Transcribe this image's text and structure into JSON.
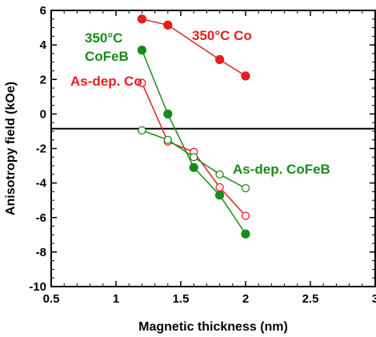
{
  "chart_data": {
    "type": "line",
    "title": "",
    "xlabel": "Magnetic thickness (nm)",
    "ylabel": "Anisotropy field (kOe)",
    "xlim": [
      0.5,
      3
    ],
    "ylim": [
      -10,
      6
    ],
    "xticks": [
      0.5,
      1,
      1.5,
      2,
      2.5,
      3
    ],
    "xtick_labels": [
      "0.5",
      "1",
      "1.5",
      "2",
      "2.5",
      "3"
    ],
    "yticks": [
      -10,
      -8,
      -6,
      -4,
      -2,
      0,
      2,
      4,
      6
    ],
    "ytick_labels": [
      "-10",
      "-8",
      "-6",
      "-4",
      "-2",
      "0",
      "2",
      "4",
      "6"
    ],
    "grid": false,
    "reference_line_y": -0.85,
    "colors": {
      "red": "#e3201f",
      "green": "#1a8a1a"
    },
    "series": [
      {
        "name": "350°C Co",
        "color": "#e3201f",
        "marker": "filled",
        "x": [
          1.2,
          1.4,
          1.8,
          2.0
        ],
        "y": [
          5.5,
          5.15,
          3.15,
          2.2
        ]
      },
      {
        "name": "350°C CoFeB",
        "color": "#1a8a1a",
        "marker": "filled",
        "x": [
          1.2,
          1.4,
          1.6,
          1.8,
          2.0
        ],
        "y": [
          3.7,
          0.0,
          -3.1,
          -4.7,
          -6.95
        ]
      },
      {
        "name": "As-dep. Co",
        "color": "#e3201f",
        "marker": "open",
        "x": [
          1.2,
          1.4,
          1.6,
          1.8,
          2.0
        ],
        "y": [
          1.8,
          -1.6,
          -2.2,
          -4.25,
          -5.9
        ]
      },
      {
        "name": "As-dep. CoFeB",
        "color": "#1a8a1a",
        "marker": "open",
        "x": [
          1.2,
          1.4,
          1.6,
          1.8,
          2.0
        ],
        "y": [
          -0.95,
          -1.5,
          -2.5,
          -3.5,
          -4.3
        ]
      }
    ],
    "annotations": [
      {
        "text": "350°C Co",
        "color": "#e3201f"
      },
      {
        "text": "350°C",
        "color": "#1a8a1a"
      },
      {
        "text": "CoFeB",
        "color": "#1a8a1a"
      },
      {
        "text": "As-dep. Co",
        "color": "#e3201f"
      },
      {
        "text": "As-dep. CoFeB",
        "color": "#1a8a1a"
      }
    ]
  }
}
